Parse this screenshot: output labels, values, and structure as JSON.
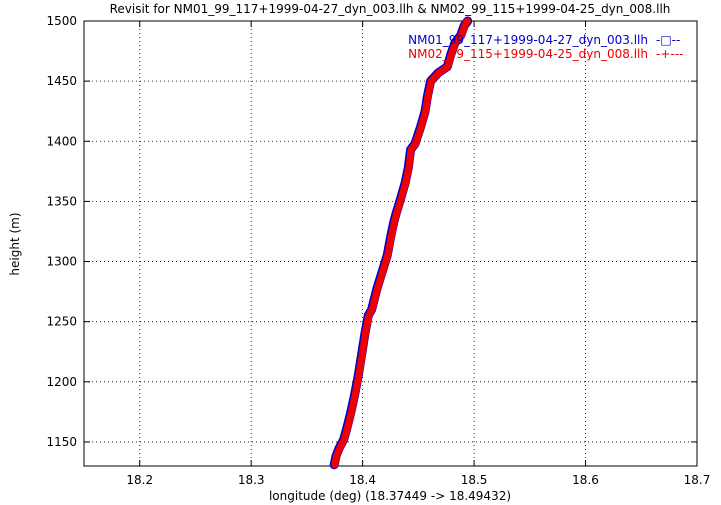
{
  "chart_data": {
    "type": "line",
    "title": "Revisit for NM01_99_117+1999-04-27_dyn_003.llh & NM02_99_115+1999-04-25_dyn_008.llh",
    "xlabel": "longitude (deg) (18.37449 -> 18.49432)",
    "ylabel": "height (m)",
    "xlim": [
      18.15,
      18.7
    ],
    "ylim": [
      1130,
      1500
    ],
    "x_ticks": [
      18.2,
      18.3,
      18.4,
      18.5,
      18.6,
      18.7
    ],
    "x_tick_labels": [
      "18.2",
      "18.3",
      "18.4",
      "18.5",
      "18.6",
      "18.7"
    ],
    "y_ticks": [
      1150,
      1200,
      1250,
      1300,
      1350,
      1400,
      1450,
      1500
    ],
    "y_tick_labels": [
      "1150",
      "1200",
      "1250",
      "1300",
      "1350",
      "1400",
      "1450",
      "1500"
    ],
    "grid": true,
    "legend_position": "top-right",
    "series": [
      {
        "name": "NM01_99_117+1999-04-27_dyn_003.llh",
        "color": "#0000cc",
        "marker": "square",
        "legend_sample": "-□--",
        "points": [
          [
            18.3745,
            1131
          ],
          [
            18.376,
            1138
          ],
          [
            18.379,
            1145
          ],
          [
            18.383,
            1152
          ],
          [
            18.386,
            1162
          ],
          [
            18.3895,
            1175
          ],
          [
            18.393,
            1190
          ],
          [
            18.396,
            1205
          ],
          [
            18.399,
            1222
          ],
          [
            18.402,
            1240
          ],
          [
            18.405,
            1255
          ],
          [
            18.408,
            1260
          ],
          [
            18.413,
            1278
          ],
          [
            18.418,
            1293
          ],
          [
            18.422,
            1305
          ],
          [
            18.425,
            1320
          ],
          [
            18.428,
            1333
          ],
          [
            18.43,
            1340
          ],
          [
            18.434,
            1352
          ],
          [
            18.438,
            1365
          ],
          [
            18.441,
            1378
          ],
          [
            18.443,
            1393
          ],
          [
            18.447,
            1398
          ],
          [
            18.452,
            1412
          ],
          [
            18.456,
            1425
          ],
          [
            18.458,
            1437
          ],
          [
            18.461,
            1450
          ],
          [
            18.468,
            1457
          ],
          [
            18.476,
            1462
          ],
          [
            18.479,
            1472
          ],
          [
            18.483,
            1482
          ],
          [
            18.488,
            1488
          ],
          [
            18.491,
            1496
          ],
          [
            18.4943,
            1500
          ]
        ]
      },
      {
        "name": "NM02_99_115+1999-04-25_dyn_008.llh",
        "color": "#ee0000",
        "marker": "plus",
        "legend_sample": "-+---",
        "points": [
          [
            18.375,
            1131
          ],
          [
            18.3765,
            1138
          ],
          [
            18.3795,
            1145
          ],
          [
            18.3835,
            1152
          ],
          [
            18.3865,
            1162
          ],
          [
            18.39,
            1175
          ],
          [
            18.3935,
            1190
          ],
          [
            18.3965,
            1205
          ],
          [
            18.3995,
            1222
          ],
          [
            18.4025,
            1240
          ],
          [
            18.4055,
            1255
          ],
          [
            18.4085,
            1260
          ],
          [
            18.4135,
            1278
          ],
          [
            18.4185,
            1293
          ],
          [
            18.4225,
            1305
          ],
          [
            18.4255,
            1320
          ],
          [
            18.4285,
            1333
          ],
          [
            18.4305,
            1340
          ],
          [
            18.4345,
            1352
          ],
          [
            18.4385,
            1365
          ],
          [
            18.4415,
            1378
          ],
          [
            18.4435,
            1393
          ],
          [
            18.4475,
            1398
          ],
          [
            18.4525,
            1412
          ],
          [
            18.4565,
            1425
          ],
          [
            18.4585,
            1437
          ],
          [
            18.4615,
            1450
          ],
          [
            18.4685,
            1457
          ],
          [
            18.4765,
            1462
          ],
          [
            18.4795,
            1472
          ],
          [
            18.4835,
            1482
          ],
          [
            18.4885,
            1488
          ],
          [
            18.4915,
            1496
          ],
          [
            18.494,
            1500
          ]
        ]
      }
    ]
  }
}
